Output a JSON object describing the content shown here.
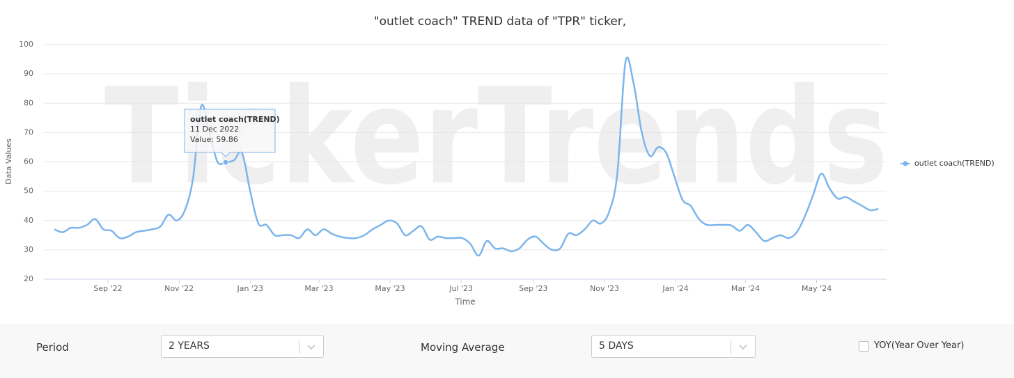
{
  "chart_data": {
    "type": "line",
    "title": "\"outlet coach\" TREND data of \"TPR\" ticker,",
    "watermark": "TickerTrends",
    "xlabel": "Time",
    "ylabel": "Data Values",
    "x": [
      "2022-07-17",
      "2022-07-24",
      "2022-07-31",
      "2022-08-07",
      "2022-08-14",
      "2022-08-21",
      "2022-08-28",
      "2022-09-04",
      "2022-09-11",
      "2022-09-18",
      "2022-09-25",
      "2022-10-02",
      "2022-10-09",
      "2022-10-16",
      "2022-10-23",
      "2022-10-30",
      "2022-11-06",
      "2022-11-13",
      "2022-11-20",
      "2022-11-27",
      "2022-12-04",
      "2022-12-11",
      "2022-12-18",
      "2022-12-25",
      "2023-01-01",
      "2023-01-08",
      "2023-01-15",
      "2023-01-22",
      "2023-01-29",
      "2023-02-05",
      "2023-02-12",
      "2023-02-19",
      "2023-02-26",
      "2023-03-05",
      "2023-03-12",
      "2023-03-19",
      "2023-03-26",
      "2023-04-02",
      "2023-04-09",
      "2023-04-16",
      "2023-04-23",
      "2023-04-30",
      "2023-05-07",
      "2023-05-14",
      "2023-05-21",
      "2023-05-28",
      "2023-06-04",
      "2023-06-11",
      "2023-06-18",
      "2023-06-25",
      "2023-07-02",
      "2023-07-09",
      "2023-07-16",
      "2023-07-23",
      "2023-07-30",
      "2023-08-06",
      "2023-08-13",
      "2023-08-20",
      "2023-08-27",
      "2023-09-03",
      "2023-09-10",
      "2023-09-17",
      "2023-09-24",
      "2023-10-01",
      "2023-10-08",
      "2023-10-15",
      "2023-10-22",
      "2023-10-29",
      "2023-11-05",
      "2023-11-12",
      "2023-11-19",
      "2023-11-26",
      "2023-12-03",
      "2023-12-10",
      "2023-12-17",
      "2023-12-24",
      "2023-12-31",
      "2024-01-07",
      "2024-01-14",
      "2024-01-21",
      "2024-01-28",
      "2024-02-04",
      "2024-02-11",
      "2024-02-18",
      "2024-02-25",
      "2024-03-03",
      "2024-03-10",
      "2024-03-17",
      "2024-03-24",
      "2024-03-31",
      "2024-04-07",
      "2024-04-14",
      "2024-04-21",
      "2024-04-28",
      "2024-05-05",
      "2024-05-12",
      "2024-05-19",
      "2024-05-26",
      "2024-06-02",
      "2024-06-09",
      "2024-06-16",
      "2024-06-23"
    ],
    "series": [
      {
        "name": "outlet coach(TREND)",
        "color": "#7cb5ec",
        "values": [
          37,
          36,
          37.5,
          37.5,
          38.5,
          40.5,
          37,
          36.5,
          34,
          34.5,
          36,
          36.5,
          37,
          38,
          42,
          40,
          43.5,
          54.5,
          79,
          70,
          60,
          59.86,
          60.5,
          63,
          50,
          39,
          38.5,
          35,
          35,
          35,
          34,
          37,
          35,
          37,
          35.5,
          34.5,
          34,
          34,
          35,
          37,
          38.5,
          40,
          39,
          35,
          36.5,
          38,
          33.5,
          34.5,
          34,
          34,
          34,
          32,
          28,
          33,
          30.5,
          30.5,
          29.5,
          30.5,
          33.5,
          34.5,
          32,
          30,
          30.5,
          35.5,
          35,
          37,
          40,
          39,
          43,
          56,
          94,
          86.7,
          70,
          62,
          65,
          63,
          55,
          47,
          45,
          40.5,
          38.5,
          38.5,
          38.5,
          38.3,
          36.5,
          38.5,
          36,
          33,
          34,
          35,
          34,
          36,
          41.5,
          48.7,
          56,
          51,
          47.5,
          48,
          46.5,
          45,
          43.5,
          44
        ]
      }
    ],
    "xlim": [
      "2022-07-08",
      "2024-06-30"
    ],
    "xticks": [
      {
        "value": "2022-09-01",
        "label": "Sep '22"
      },
      {
        "value": "2022-11-01",
        "label": "Nov '22"
      },
      {
        "value": "2023-01-01",
        "label": "Jan '23"
      },
      {
        "value": "2023-03-01",
        "label": "Mar '23"
      },
      {
        "value": "2023-05-01",
        "label": "May '23"
      },
      {
        "value": "2023-07-01",
        "label": "Jul '23"
      },
      {
        "value": "2023-09-01",
        "label": "Sep '23"
      },
      {
        "value": "2023-11-01",
        "label": "Nov '23"
      },
      {
        "value": "2024-01-01",
        "label": "Jan '24"
      },
      {
        "value": "2024-03-01",
        "label": "Mar '24"
      },
      {
        "value": "2024-05-01",
        "label": "May '24"
      }
    ],
    "ylim": [
      20,
      100
    ],
    "yticks": [
      20,
      30,
      40,
      50,
      60,
      70,
      80,
      90,
      100
    ],
    "grid": true,
    "legend": "right",
    "tooltip": {
      "series": "outlet coach(TREND)",
      "date": "11 Dec 2022",
      "label": "Value: 59.86",
      "index": 21
    }
  },
  "controls": {
    "period_label": "Period",
    "period": "2 YEARS",
    "moving_average_label": "Moving Average",
    "moving_average": "5 DAYS",
    "yoy": "YOY(Year Over Year)"
  }
}
